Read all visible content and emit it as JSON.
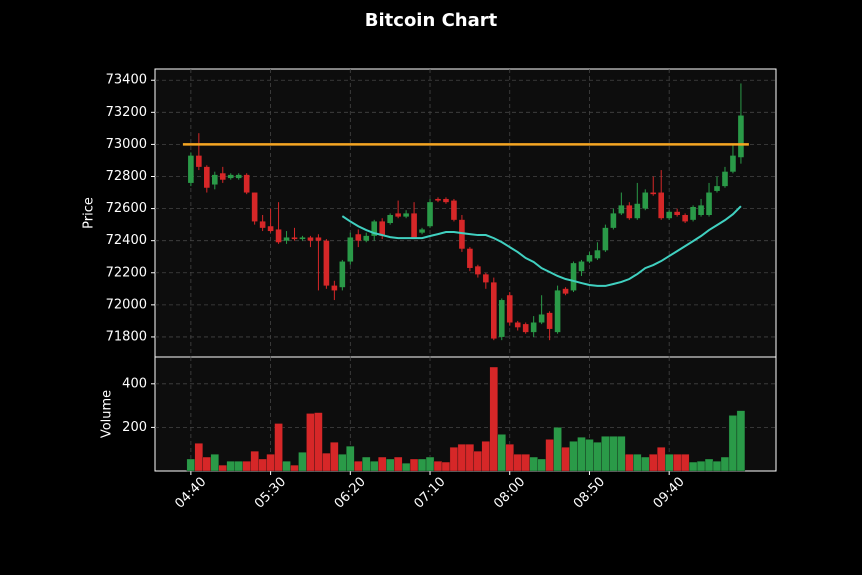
{
  "chart_data": {
    "type": "candlestick",
    "title": "Bitcoin Chart",
    "ylabel": "Price",
    "up_color": "#2a9a48",
    "down_color": "#d62728",
    "grid": true,
    "categories": [
      "04:40",
      null,
      null,
      null,
      null,
      null,
      null,
      null,
      null,
      null,
      "05:30",
      null,
      null,
      null,
      null,
      null,
      null,
      null,
      null,
      null,
      "06:20",
      null,
      null,
      null,
      null,
      null,
      null,
      null,
      null,
      null,
      "07:10",
      null,
      null,
      null,
      null,
      null,
      null,
      null,
      null,
      null,
      "08:00",
      null,
      null,
      null,
      null,
      null,
      null,
      null,
      null,
      null,
      "08:50",
      null,
      null,
      null,
      null,
      null,
      null,
      null,
      null,
      null,
      "09:40",
      null,
      null,
      null,
      null,
      null,
      null,
      null,
      null,
      null
    ],
    "xlim": [
      -4.5,
      73.4
    ],
    "ylim": [
      71675,
      73470
    ],
    "yticks": [
      71800,
      72000,
      72200,
      72400,
      72600,
      72800,
      73000,
      73200,
      73400
    ],
    "open": [
      72760,
      72930,
      72860,
      72750,
      72820,
      72790,
      72790,
      72810,
      72700,
      72520,
      72490,
      72470,
      72400,
      72420,
      72410,
      72420,
      72420,
      72400,
      72120,
      72110,
      72270,
      72440,
      72400,
      72430,
      72520,
      72510,
      72570,
      72550,
      72570,
      72450,
      72490,
      72660,
      72660,
      72650,
      72530,
      72350,
      72240,
      72190,
      72140,
      71800,
      72060,
      71890,
      71880,
      71830,
      71890,
      71950,
      71830,
      72100,
      72090,
      72210,
      72270,
      72290,
      72340,
      72480,
      72570,
      72620,
      72540,
      72600,
      72700,
      72700,
      72540,
      72580,
      72560,
      72530,
      72560,
      72560,
      72710,
      72740,
      72830,
      72920
    ],
    "high": [
      72950,
      73070,
      72870,
      72830,
      72860,
      72820,
      72820,
      72820,
      72700,
      72560,
      72600,
      72640,
      72460,
      72480,
      72430,
      72430,
      72440,
      72410,
      72150,
      72280,
      72450,
      72470,
      72450,
      72530,
      72540,
      72570,
      72650,
      72590,
      72640,
      72480,
      72660,
      72670,
      72670,
      72660,
      72560,
      72360,
      72250,
      72200,
      72170,
      72040,
      72080,
      71900,
      71890,
      71930,
      72060,
      71960,
      72120,
      72110,
      72270,
      72280,
      72330,
      72390,
      72500,
      72600,
      72700,
      72640,
      72760,
      72720,
      72800,
      72840,
      72590,
      72600,
      72570,
      72620,
      72660,
      72760,
      72800,
      72860,
      73000,
      73380
    ],
    "low": [
      72740,
      72840,
      72700,
      72720,
      72760,
      72780,
      72780,
      72690,
      72500,
      72460,
      72450,
      72380,
      72380,
      72400,
      72400,
      72360,
      72090,
      72100,
      72030,
      72090,
      72250,
      72360,
      72390,
      72400,
      72410,
      72500,
      72540,
      72540,
      72410,
      72440,
      72480,
      72640,
      72630,
      72520,
      72330,
      72210,
      72170,
      72100,
      71780,
      71780,
      71870,
      71840,
      71820,
      71800,
      71880,
      71780,
      71820,
      72060,
      72080,
      72180,
      72260,
      72280,
      72330,
      72470,
      72560,
      72530,
      72530,
      72590,
      72680,
      72530,
      72530,
      72550,
      72510,
      72520,
      72550,
      72550,
      72700,
      72730,
      72820,
      72880
    ],
    "close": [
      72930,
      72860,
      72730,
      72810,
      72780,
      72810,
      72810,
      72700,
      72520,
      72480,
      72460,
      72390,
      72420,
      72410,
      72420,
      72400,
      72400,
      72120,
      72090,
      72270,
      72420,
      72400,
      72430,
      72520,
      72430,
      72560,
      72550,
      72570,
      72420,
      72470,
      72640,
      72650,
      72640,
      72530,
      72350,
      72230,
      72190,
      72140,
      71790,
      72030,
      71890,
      71860,
      71830,
      71890,
      71940,
      71850,
      72090,
      72070,
      72260,
      72270,
      72310,
      72340,
      72480,
      72570,
      72620,
      72540,
      72630,
      72700,
      72690,
      72540,
      72580,
      72560,
      72520,
      72610,
      72620,
      72700,
      72740,
      72830,
      72930,
      73180
    ],
    "hline": {
      "value": 73000,
      "color": "#f5a623"
    },
    "ma": {
      "color": "#40d0c0",
      "values": [
        null,
        null,
        null,
        null,
        null,
        null,
        null,
        null,
        null,
        null,
        null,
        null,
        null,
        null,
        null,
        null,
        null,
        null,
        null,
        72553,
        72520,
        72490,
        72466,
        72447,
        72435,
        72422,
        72416,
        72416,
        72416,
        72416,
        72429,
        72441,
        72454,
        72454,
        72447,
        72441,
        72435,
        72435,
        72416,
        72391,
        72360,
        72329,
        72292,
        72267,
        72229,
        72205,
        72180,
        72161,
        72149,
        72136,
        72124,
        72118,
        72118,
        72130,
        72143,
        72161,
        72192,
        72229,
        72248,
        72273,
        72304,
        72335,
        72366,
        72397,
        72429,
        72466,
        72497,
        72528,
        72565,
        72615
      ]
    },
    "volume": {
      "ylabel": "Volume",
      "ylim": [
        0,
        523
      ],
      "yticks": [
        200,
        400
      ],
      "values": [
        55,
        127,
        64,
        77,
        27,
        45,
        45,
        45,
        91,
        55,
        77,
        218,
        45,
        27,
        86,
        264,
        268,
        82,
        132,
        77,
        114,
        45,
        64,
        45,
        64,
        55,
        64,
        36,
        55,
        55,
        64,
        45,
        41,
        109,
        123,
        123,
        91,
        136,
        477,
        168,
        123,
        77,
        77,
        64,
        55,
        145,
        200,
        109,
        136,
        155,
        145,
        132,
        159,
        159,
        159,
        77,
        77,
        64,
        77,
        109,
        77,
        77,
        77,
        41,
        45,
        55,
        45,
        64,
        255,
        277
      ]
    }
  }
}
